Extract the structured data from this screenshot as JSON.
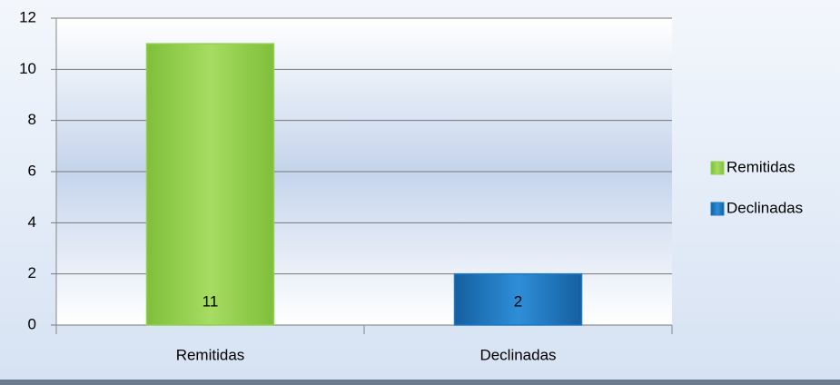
{
  "chart_data": {
    "type": "bar",
    "categories": [
      "Remitidas",
      "Declinadas"
    ],
    "values": [
      11,
      2
    ],
    "colors": [
      "#92d050",
      "#1f7bc6"
    ],
    "ylim": [
      0,
      12
    ],
    "yticks": [
      0,
      2,
      4,
      6,
      8,
      10,
      12
    ],
    "grid": true,
    "legend": "right",
    "data_labels": true
  }
}
